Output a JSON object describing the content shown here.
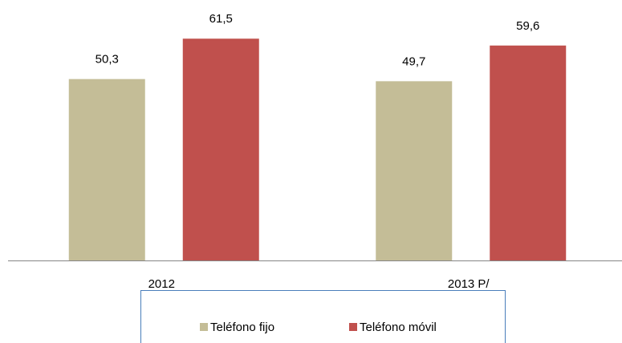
{
  "chart_data": {
    "type": "bar",
    "categories": [
      "2012",
      "2013 P/"
    ],
    "series": [
      {
        "name": "Teléfono fijo",
        "color": "#c4bd97",
        "values": [
          50.3,
          49.7
        ],
        "value_labels": [
          "50,3",
          "49,7"
        ]
      },
      {
        "name": "Teléfono móvil",
        "color": "#c0504d",
        "values": [
          61.5,
          59.6
        ],
        "value_labels": [
          "61,5",
          "59,6"
        ]
      }
    ],
    "ylim": [
      0,
      70
    ],
    "grid": false,
    "legend": "bottom"
  }
}
